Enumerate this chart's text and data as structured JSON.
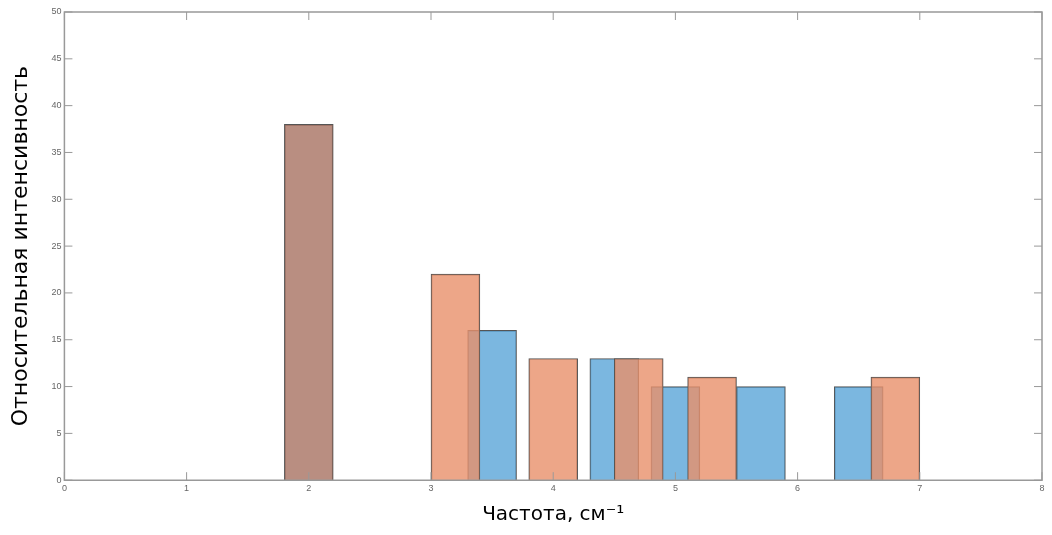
{
  "chart_data": {
    "type": "bar",
    "xlabel": "Частота, см⁻¹",
    "ylabel": "Относительная интенсивность",
    "series": [
      {
        "color": "#5aa5d8",
        "x": [
          3.5,
          4.5,
          5,
          5.7,
          6.5
        ],
        "values": [
          16,
          13,
          10,
          10,
          10
        ]
      },
      {
        "color": "#e9906a",
        "x": [
          3.2,
          4,
          4.7,
          5.3,
          6.8
        ],
        "values": [
          22,
          13,
          13,
          11,
          11
        ]
      },
      {
        "color": "#a87262",
        "x": [
          2
        ],
        "values": [
          38
        ]
      }
    ],
    "xlim": [
      0,
      8
    ],
    "xticks": [
      0,
      1,
      2,
      3,
      4,
      5,
      6,
      7,
      8
    ],
    "ylim": [
      0,
      50
    ],
    "yticks": [
      0,
      5,
      10,
      15,
      20,
      25,
      30,
      35,
      40,
      45,
      50
    ],
    "grid": false,
    "legend": false
  }
}
